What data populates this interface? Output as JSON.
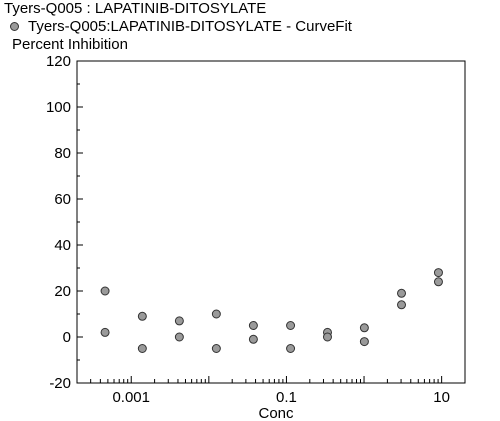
{
  "chart_data": {
    "type": "scatter",
    "title": "Tyers-Q005  :  LAPATINIB-DITOSYLATE",
    "ylabel": "Percent  Inhibition",
    "xlabel": "Conc",
    "xscale": "log",
    "xlim": [
      0.0002,
      20
    ],
    "ylim": [
      -20,
      120
    ],
    "yticks": [
      -20,
      0,
      20,
      40,
      60,
      80,
      100,
      120
    ],
    "xticks": [
      {
        "value": 0.001,
        "label": "0.001"
      },
      {
        "value": 0.1,
        "label": "0.1"
      },
      {
        "value": 10,
        "label": "10"
      }
    ],
    "legend_placement": "top-left",
    "grid": false,
    "series": [
      {
        "name": "Tyers-Q005:LAPATINIB-DITOSYLATE - CurveFit",
        "color": "#9a9a9a",
        "points": [
          {
            "x": 0.00046,
            "y": 20
          },
          {
            "x": 0.00046,
            "y": 2
          },
          {
            "x": 0.00139,
            "y": 9
          },
          {
            "x": 0.00139,
            "y": -5
          },
          {
            "x": 0.00417,
            "y": 7
          },
          {
            "x": 0.00417,
            "y": 0
          },
          {
            "x": 0.0125,
            "y": 10
          },
          {
            "x": 0.0125,
            "y": -5
          },
          {
            "x": 0.0375,
            "y": 5
          },
          {
            "x": 0.0375,
            "y": -1
          },
          {
            "x": 0.113,
            "y": 5
          },
          {
            "x": 0.113,
            "y": -5
          },
          {
            "x": 0.338,
            "y": 2
          },
          {
            "x": 0.338,
            "y": 0
          },
          {
            "x": 1.01,
            "y": 4
          },
          {
            "x": 1.01,
            "y": -2
          },
          {
            "x": 3.04,
            "y": 19
          },
          {
            "x": 3.04,
            "y": 14
          },
          {
            "x": 9.1,
            "y": 28
          },
          {
            "x": 9.1,
            "y": 24
          }
        ]
      }
    ]
  }
}
